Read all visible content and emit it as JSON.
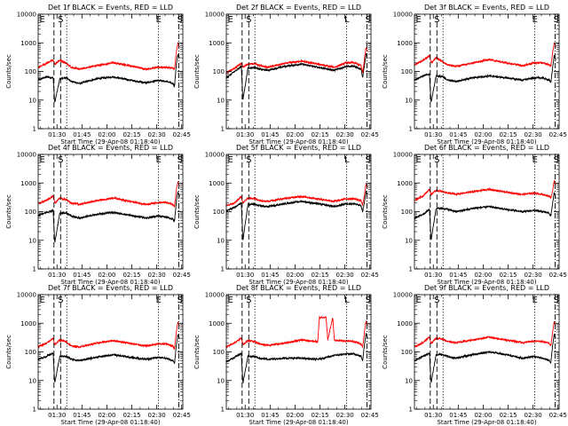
{
  "colors": {
    "events": "#000000",
    "lld": "#ff0000",
    "frame": "#000000",
    "background": "#ffffff"
  },
  "chart_data": [
    {
      "type": "line",
      "title": "Det 1f BLACK = Events, RED = LLD",
      "xlabel": "Start Time (29-Apr-08 01:18:40)",
      "ylabel": "Counts/sec",
      "x_ticks": [
        "01:30",
        "01:45",
        "02:00",
        "02:15",
        "02:30",
        "02:45"
      ],
      "y_ticks": [
        "1",
        "10",
        "100",
        "1000",
        "10000"
      ],
      "ylim": [
        1,
        10000
      ],
      "yscale": "log",
      "grid": false,
      "markers": [
        "E",
        "S",
        "E",
        "S"
      ],
      "series": [
        {
          "name": "BLACK = Events",
          "color": "#000000",
          "x_minutes": [
            0,
            5,
            9,
            10,
            13,
            17,
            20,
            25,
            35,
            45,
            55,
            65,
            72,
            77,
            81,
            82,
            83,
            84,
            85
          ],
          "values": [
            50,
            65,
            60,
            8,
            55,
            60,
            45,
            38,
            55,
            65,
            50,
            40,
            48,
            45,
            38,
            30,
            150,
            400,
            300
          ]
        },
        {
          "name": "RED = LLD",
          "color": "#ff0000",
          "x_minutes": [
            0,
            5,
            9,
            10,
            13,
            17,
            20,
            25,
            35,
            45,
            55,
            65,
            72,
            77,
            81,
            82,
            83,
            84,
            85
          ],
          "values": [
            140,
            190,
            260,
            180,
            250,
            190,
            140,
            120,
            160,
            200,
            160,
            120,
            140,
            140,
            130,
            120,
            400,
            1000,
            700
          ]
        }
      ]
    },
    {
      "type": "line",
      "title": "Det 2f BLACK = Events, RED = LLD",
      "xlabel": "Start Time (29-Apr-08 01:18:40)",
      "ylabel": "Counts/sec",
      "x_ticks": [
        "01:30",
        "01:45",
        "02:00",
        "02:15",
        "02:30",
        "02:45"
      ],
      "y_ticks": [
        "1",
        "10",
        "100",
        "1000",
        "10000"
      ],
      "ylim": [
        1,
        10000
      ],
      "yscale": "log",
      "grid": false,
      "markers": [
        "E",
        "S",
        "L",
        "S"
      ],
      "series": [
        {
          "name": "BLACK = Events",
          "color": "#000000",
          "x_minutes": [
            0,
            5,
            9,
            10,
            13,
            17,
            20,
            25,
            35,
            45,
            55,
            65,
            72,
            77,
            81,
            82,
            83,
            84,
            85
          ],
          "values": [
            60,
            100,
            150,
            10,
            130,
            140,
            120,
            110,
            150,
            180,
            140,
            110,
            150,
            150,
            120,
            60,
            150,
            400,
            300
          ]
        },
        {
          "name": "RED = LLD",
          "color": "#ff0000",
          "x_minutes": [
            0,
            5,
            9,
            10,
            13,
            17,
            20,
            25,
            35,
            45,
            55,
            65,
            72,
            77,
            81,
            82,
            83,
            84,
            85
          ],
          "values": [
            90,
            130,
            190,
            140,
            180,
            190,
            160,
            140,
            190,
            230,
            180,
            140,
            200,
            200,
            160,
            90,
            250,
            700,
            500
          ]
        }
      ]
    },
    {
      "type": "line",
      "title": "Det 3f BLACK = Events, RED = LLD",
      "xlabel": "Start Time (29-Apr-08 01:18:40)",
      "ylabel": "Counts/sec",
      "x_ticks": [
        "01:30",
        "01:45",
        "02:00",
        "02:15",
        "02:30",
        "02:45"
      ],
      "y_ticks": [
        "1",
        "10",
        "100",
        "1000",
        "10000"
      ],
      "ylim": [
        1,
        10000
      ],
      "yscale": "log",
      "grid": false,
      "markers": [
        "E",
        "S",
        "E",
        "S"
      ],
      "series": [
        {
          "name": "BLACK = Events",
          "color": "#000000",
          "x_minutes": [
            0,
            5,
            9,
            10,
            13,
            17,
            20,
            25,
            35,
            45,
            55,
            65,
            72,
            77,
            81,
            82,
            83,
            84,
            85
          ],
          "values": [
            50,
            70,
            80,
            8,
            70,
            65,
            50,
            45,
            60,
            70,
            60,
            50,
            60,
            60,
            50,
            40,
            120,
            350,
            250
          ]
        },
        {
          "name": "RED = LLD",
          "color": "#ff0000",
          "x_minutes": [
            0,
            5,
            9,
            10,
            13,
            17,
            20,
            25,
            35,
            45,
            55,
            65,
            72,
            77,
            81,
            82,
            83,
            84,
            85
          ],
          "values": [
            170,
            240,
            350,
            200,
            300,
            220,
            170,
            150,
            200,
            260,
            200,
            160,
            200,
            200,
            170,
            150,
            400,
            1000,
            700
          ]
        }
      ]
    },
    {
      "type": "line",
      "title": "Det 4f BLACK = Events, RED = LLD",
      "xlabel": "Start Time (29-Apr-08 01:18:40)",
      "ylabel": "Counts/sec",
      "x_ticks": [
        "01:30",
        "01:45",
        "02:00",
        "02:15",
        "02:30",
        "02:45"
      ],
      "y_ticks": [
        "1",
        "10",
        "100",
        "1000",
        "10000"
      ],
      "ylim": [
        1,
        10000
      ],
      "yscale": "log",
      "grid": false,
      "markers": [
        "E",
        "S",
        "E",
        "S"
      ],
      "series": [
        {
          "name": "BLACK = Events",
          "color": "#000000",
          "x_minutes": [
            0,
            5,
            9,
            10,
            13,
            17,
            20,
            25,
            35,
            45,
            55,
            65,
            72,
            77,
            81,
            82,
            83,
            84,
            85
          ],
          "values": [
            75,
            95,
            110,
            8,
            90,
            90,
            70,
            60,
            80,
            95,
            75,
            60,
            70,
            65,
            55,
            45,
            200,
            500,
            350
          ]
        },
        {
          "name": "RED = LLD",
          "color": "#ff0000",
          "x_minutes": [
            0,
            5,
            9,
            10,
            13,
            17,
            20,
            25,
            35,
            45,
            55,
            65,
            72,
            77,
            81,
            82,
            83,
            84,
            85
          ],
          "values": [
            190,
            250,
            350,
            200,
            300,
            260,
            200,
            180,
            240,
            300,
            230,
            180,
            210,
            210,
            180,
            150,
            500,
            1100,
            800
          ]
        }
      ]
    },
    {
      "type": "line",
      "title": "Det 5f BLACK = Events, RED = LLD",
      "xlabel": "Start Time (29-Apr-08 01:18:40)",
      "ylabel": "Counts/sec",
      "x_ticks": [
        "01:30",
        "01:45",
        "02:00",
        "02:15",
        "02:30",
        "02:45"
      ],
      "y_ticks": [
        "1",
        "10",
        "100",
        "1000",
        "10000"
      ],
      "ylim": [
        1,
        10000
      ],
      "yscale": "log",
      "grid": false,
      "markers": [
        "E",
        "S",
        "L",
        "S"
      ],
      "series": [
        {
          "name": "BLACK = Events",
          "color": "#000000",
          "x_minutes": [
            0,
            5,
            9,
            10,
            13,
            17,
            20,
            25,
            35,
            45,
            55,
            65,
            72,
            77,
            81,
            82,
            83,
            84,
            85
          ],
          "values": [
            110,
            140,
            200,
            10,
            180,
            180,
            160,
            150,
            190,
            230,
            190,
            150,
            190,
            190,
            160,
            100,
            200,
            500,
            400
          ]
        },
        {
          "name": "RED = LLD",
          "color": "#ff0000",
          "x_minutes": [
            0,
            5,
            9,
            10,
            13,
            17,
            20,
            25,
            35,
            45,
            55,
            65,
            72,
            77,
            81,
            82,
            83,
            84,
            85
          ],
          "values": [
            160,
            200,
            330,
            200,
            300,
            290,
            250,
            230,
            290,
            340,
            280,
            230,
            280,
            280,
            240,
            170,
            350,
            900,
            700
          ]
        }
      ]
    },
    {
      "type": "line",
      "title": "Det 6f BLACK = Events, RED = LLD",
      "xlabel": "Start Time (29-Apr-08 01:18:40)",
      "ylabel": "Counts/sec",
      "x_ticks": [
        "01:30",
        "01:45",
        "02:00",
        "02:15",
        "02:30",
        "02:45"
      ],
      "y_ticks": [
        "1",
        "10",
        "100",
        "1000",
        "10000"
      ],
      "ylim": [
        1,
        10000
      ],
      "yscale": "log",
      "grid": false,
      "markers": [
        "E",
        "S",
        "E",
        "S"
      ],
      "series": [
        {
          "name": "BLACK = Events",
          "color": "#000000",
          "x_minutes": [
            0,
            5,
            9,
            10,
            13,
            17,
            20,
            25,
            35,
            45,
            55,
            65,
            72,
            77,
            81,
            82,
            83,
            84,
            85
          ],
          "values": [
            60,
            80,
            120,
            10,
            130,
            130,
            120,
            100,
            130,
            150,
            120,
            100,
            110,
            100,
            90,
            70,
            180,
            450,
            300
          ]
        },
        {
          "name": "RED = LLD",
          "color": "#ff0000",
          "x_minutes": [
            0,
            5,
            9,
            10,
            13,
            17,
            20,
            25,
            35,
            45,
            55,
            65,
            72,
            77,
            81,
            82,
            83,
            84,
            85
          ],
          "values": [
            250,
            350,
            600,
            400,
            550,
            500,
            450,
            400,
            500,
            600,
            480,
            400,
            450,
            400,
            350,
            300,
            500,
            1200,
            900
          ]
        }
      ]
    },
    {
      "type": "line",
      "title": "Det 7f BLACK = Events, RED = LLD",
      "xlabel": "Start Time (29-Apr-08 01:18:40)",
      "ylabel": "Counts/sec",
      "x_ticks": [
        "01:30",
        "01:45",
        "02:00",
        "02:15",
        "02:30",
        "02:45"
      ],
      "y_ticks": [
        "1",
        "10",
        "100",
        "1000",
        "10000"
      ],
      "ylim": [
        1,
        10000
      ],
      "yscale": "log",
      "grid": false,
      "markers": [
        "E",
        "S",
        "E",
        "S"
      ],
      "series": [
        {
          "name": "BLACK = Events",
          "color": "#000000",
          "x_minutes": [
            0,
            5,
            9,
            10,
            13,
            17,
            20,
            25,
            35,
            45,
            55,
            65,
            72,
            77,
            81,
            82,
            83,
            84,
            85
          ],
          "values": [
            55,
            70,
            90,
            8,
            70,
            70,
            55,
            50,
            65,
            80,
            65,
            55,
            65,
            60,
            50,
            40,
            150,
            400,
            300
          ]
        },
        {
          "name": "RED = LLD",
          "color": "#ff0000",
          "x_minutes": [
            0,
            5,
            9,
            10,
            13,
            17,
            20,
            25,
            35,
            45,
            55,
            65,
            72,
            77,
            81,
            82,
            83,
            84,
            85
          ],
          "values": [
            150,
            200,
            300,
            180,
            260,
            220,
            160,
            150,
            200,
            250,
            200,
            160,
            190,
            190,
            160,
            130,
            450,
            1100,
            800
          ]
        }
      ]
    },
    {
      "type": "line",
      "title": "Det 8f BLACK = Events, RED = LLD",
      "xlabel": "Start Time (29-Apr-08 01:18:40)",
      "ylabel": "Counts/sec",
      "x_ticks": [
        "01:30",
        "01:45",
        "02:00",
        "02:15",
        "02:30",
        "02:45"
      ],
      "y_ticks": [
        "1",
        "10",
        "100",
        "1000",
        "10000"
      ],
      "ylim": [
        1,
        10000
      ],
      "yscale": "log",
      "grid": false,
      "markers": [
        "E",
        "S",
        "L",
        "S"
      ],
      "series": [
        {
          "name": "BLACK = Events",
          "color": "#000000",
          "x_minutes": [
            0,
            5,
            9,
            10,
            13,
            17,
            20,
            25,
            35,
            45,
            55,
            65,
            72,
            77,
            81,
            82,
            83,
            84,
            85
          ],
          "values": [
            45,
            65,
            90,
            8,
            70,
            70,
            60,
            55,
            60,
            60,
            55,
            75,
            85,
            85,
            70,
            50,
            160,
            450,
            300
          ]
        },
        {
          "name": "RED = LLD",
          "color": "#ff0000",
          "x_minutes": [
            0,
            5,
            9,
            10,
            13,
            17,
            20,
            25,
            35,
            45,
            55,
            56,
            60,
            61,
            64,
            65,
            72,
            77,
            81,
            82,
            83,
            84,
            85
          ],
          "values": [
            150,
            210,
            300,
            180,
            250,
            230,
            190,
            170,
            200,
            260,
            230,
            1600,
            1600,
            260,
            1600,
            260,
            240,
            230,
            190,
            150,
            450,
            1200,
            800
          ]
        }
      ]
    },
    {
      "type": "line",
      "title": "Det 9f BLACK = Events, RED = LLD",
      "xlabel": "Start Time (29-Apr-08 01:18:40)",
      "ylabel": "Counts/sec",
      "x_ticks": [
        "01:30",
        "01:45",
        "02:00",
        "02:15",
        "02:30",
        "02:45"
      ],
      "y_ticks": [
        "1",
        "10",
        "100",
        "1000",
        "10000"
      ],
      "ylim": [
        1,
        10000
      ],
      "yscale": "log",
      "grid": false,
      "markers": [
        "E",
        "S",
        "E",
        "S"
      ],
      "series": [
        {
          "name": "BLACK = Events",
          "color": "#000000",
          "x_minutes": [
            0,
            5,
            9,
            10,
            13,
            17,
            20,
            25,
            35,
            45,
            55,
            65,
            72,
            77,
            81,
            82,
            83,
            84,
            85
          ],
          "values": [
            50,
            70,
            90,
            8,
            80,
            80,
            70,
            60,
            80,
            100,
            80,
            60,
            70,
            60,
            50,
            40,
            150,
            400,
            300
          ]
        },
        {
          "name": "RED = LLD",
          "color": "#ff0000",
          "x_minutes": [
            0,
            5,
            9,
            10,
            13,
            17,
            20,
            25,
            35,
            45,
            55,
            65,
            72,
            77,
            81,
            82,
            83,
            84,
            85
          ],
          "values": [
            150,
            210,
            330,
            200,
            300,
            280,
            230,
            210,
            260,
            330,
            260,
            210,
            240,
            230,
            200,
            160,
            450,
            1100,
            800
          ]
        }
      ]
    }
  ]
}
